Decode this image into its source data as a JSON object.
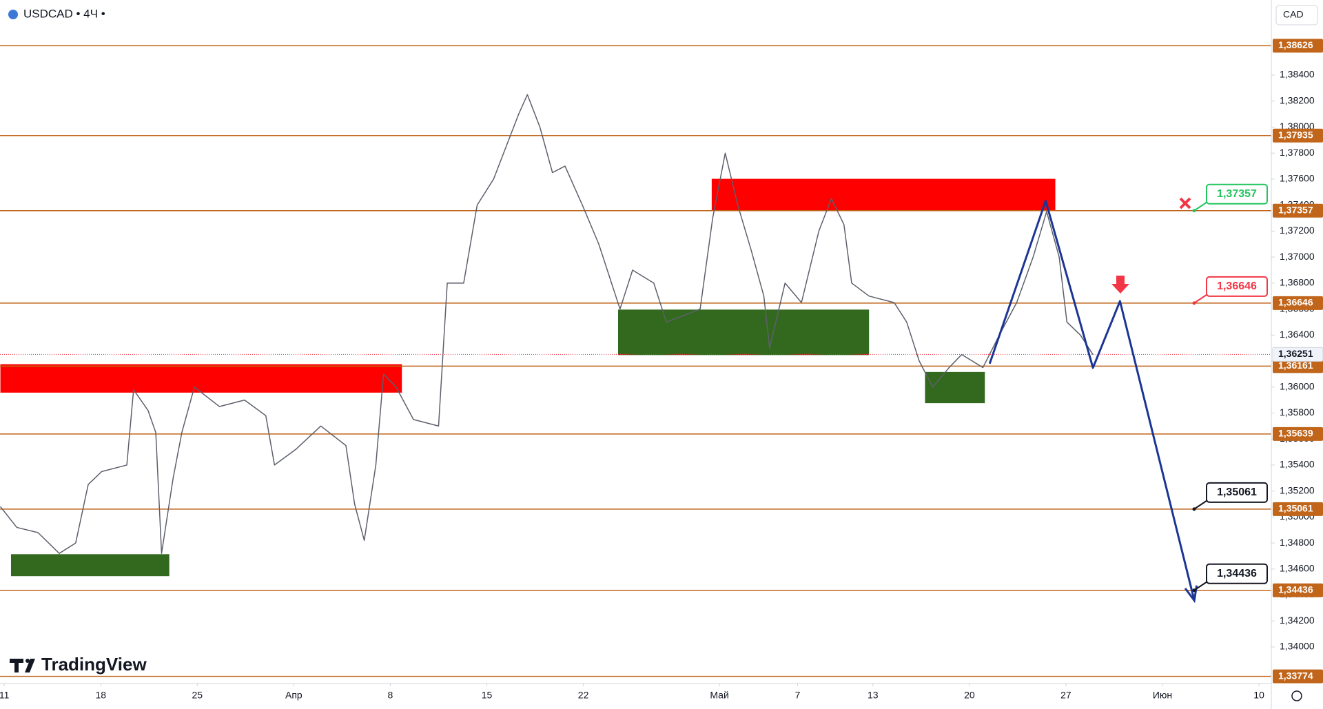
{
  "header": {
    "symbol": "USDCAD • 4Ч •",
    "currency": "CAD"
  },
  "logo": "TradingView",
  "chart_data": {
    "type": "line",
    "xlim": [
      -0.044,
      13.128
    ],
    "ylim": [
      1.33719,
      1.38978
    ],
    "xticks": [
      {
        "value": 0,
        "label": "11"
      },
      {
        "value": 1,
        "label": "18"
      },
      {
        "value": 2,
        "label": "25"
      },
      {
        "value": 3,
        "label": "Апр"
      },
      {
        "value": 4,
        "label": "8"
      },
      {
        "value": 5,
        "label": "15"
      },
      {
        "value": 6,
        "label": "22"
      },
      {
        "value": 7.41,
        "label": "Май"
      },
      {
        "value": 8.22,
        "label": "7"
      },
      {
        "value": 9,
        "label": "13"
      },
      {
        "value": 10,
        "label": "20"
      },
      {
        "value": 11,
        "label": "27"
      },
      {
        "value": 12,
        "label": "Июн"
      },
      {
        "value": 13,
        "label": "10"
      }
    ],
    "yticks": [
      {
        "value": 1.34,
        "label": "1,34000"
      },
      {
        "value": 1.342,
        "label": "1,34200"
      },
      {
        "value": 1.344,
        "label": "1,34400"
      },
      {
        "value": 1.346,
        "label": "1,34600"
      },
      {
        "value": 1.348,
        "label": "1,34800"
      },
      {
        "value": 1.35,
        "label": "1,35000"
      },
      {
        "value": 1.352,
        "label": "1,35200"
      },
      {
        "value": 1.354,
        "label": "1,35400"
      },
      {
        "value": 1.356,
        "label": "1,35600"
      },
      {
        "value": 1.358,
        "label": "1,35800"
      },
      {
        "value": 1.36,
        "label": "1,36000"
      },
      {
        "value": 1.362,
        "label": "1,36200"
      },
      {
        "value": 1.364,
        "label": "1,36400"
      },
      {
        "value": 1.366,
        "label": "1,36600"
      },
      {
        "value": 1.368,
        "label": "1,36800"
      },
      {
        "value": 1.37,
        "label": "1,37000"
      },
      {
        "value": 1.372,
        "label": "1,37200"
      },
      {
        "value": 1.374,
        "label": "1,37400"
      },
      {
        "value": 1.376,
        "label": "1,37600"
      },
      {
        "value": 1.378,
        "label": "1,37800"
      },
      {
        "value": 1.38,
        "label": "1,38000"
      },
      {
        "value": 1.382,
        "label": "1,38200"
      },
      {
        "value": 1.384,
        "label": "1,38400"
      }
    ],
    "levels": [
      {
        "value": 1.38626,
        "label": "1,38626"
      },
      {
        "value": 1.37935,
        "label": "1,37935"
      },
      {
        "value": 1.37357,
        "label": "1,37357"
      },
      {
        "value": 1.36646,
        "label": "1,36646"
      },
      {
        "value": 1.36161,
        "label": "1,36161"
      },
      {
        "value": 1.35639,
        "label": "1,35639"
      },
      {
        "value": 1.35061,
        "label": "1,35061"
      },
      {
        "value": 1.34436,
        "label": "1,34436"
      },
      {
        "value": 1.33774,
        "label": "1,33774"
      }
    ],
    "level_color": "#c0651a",
    "current_price": {
      "value": 1.36251,
      "label": "1,36251"
    },
    "price": {
      "color": "#5d606b",
      "x": [
        -0.04,
        0.13,
        0.35,
        0.57,
        0.74,
        0.87,
        1.01,
        1.27,
        1.34,
        1.49,
        1.57,
        1.63,
        1.75,
        1.84,
        1.97,
        2.23,
        2.49,
        2.71,
        2.8,
        3.02,
        3.28,
        3.54,
        3.63,
        3.73,
        3.85,
        3.93,
        4.06,
        4.24,
        4.5,
        4.59,
        4.76,
        4.9,
        5.07,
        5.2,
        5.33,
        5.42,
        5.55,
        5.68,
        5.81,
        5.99,
        6.16,
        6.38,
        6.51,
        6.73,
        6.86,
        7.04,
        7.21,
        7.34,
        7.47,
        7.6,
        7.74,
        7.87,
        7.93,
        8.09,
        8.26,
        8.44,
        8.57,
        8.7,
        8.78,
        8.96,
        9.22,
        9.35,
        9.48,
        9.62,
        9.79,
        9.92,
        10.14,
        10.31,
        10.49,
        10.66,
        10.8,
        10.93,
        11.01,
        11.15,
        11.28
      ],
      "values": [
        1.3508,
        1.3492,
        1.3488,
        1.3472,
        1.348,
        1.3525,
        1.3535,
        1.354,
        1.3598,
        1.3582,
        1.3565,
        1.3472,
        1.353,
        1.3565,
        1.36,
        1.3585,
        1.359,
        1.3578,
        1.354,
        1.3552,
        1.357,
        1.3555,
        1.351,
        1.3482,
        1.354,
        1.361,
        1.36,
        1.3575,
        1.357,
        1.368,
        1.368,
        1.374,
        1.376,
        1.3785,
        1.381,
        1.3825,
        1.38,
        1.3765,
        1.377,
        1.374,
        1.371,
        1.366,
        1.369,
        1.368,
        1.365,
        1.3655,
        1.366,
        1.373,
        1.378,
        1.374,
        1.3705,
        1.367,
        1.363,
        1.368,
        1.3665,
        1.372,
        1.3745,
        1.3725,
        1.368,
        1.367,
        1.3665,
        1.365,
        1.362,
        1.36,
        1.3615,
        1.3625,
        1.3615,
        1.364,
        1.3665,
        1.37,
        1.3735,
        1.37,
        1.365,
        1.364,
        1.3625
      ]
    },
    "zones": [
      {
        "color": "#ff0000",
        "x": [
          -0.04,
          4.12
        ],
        "y": [
          1.35957,
          1.36176
        ]
      },
      {
        "color": "#ff0000",
        "x": [
          7.33,
          10.89
        ],
        "y": [
          1.37355,
          1.37602
        ]
      },
      {
        "color": "#33691e",
        "x": [
          0.07,
          1.71
        ],
        "y": [
          1.34545,
          1.34714
        ]
      },
      {
        "color": "#33691e",
        "x": [
          6.36,
          8.96
        ],
        "y": [
          1.36246,
          1.36596
        ]
      },
      {
        "color": "#33691e",
        "x": [
          9.54,
          10.16
        ],
        "y": [
          1.35876,
          1.36116
        ]
      }
    ],
    "projection": {
      "color": "#1c3594",
      "x": [
        10.21,
        10.79,
        11.28,
        11.56,
        12.33
      ],
      "values": [
        1.3618,
        1.37433,
        1.36148,
        1.36661,
        1.34358
      ]
    },
    "callouts": [
      {
        "value": 1.37357,
        "label": "1,37357",
        "color": "#22c55e"
      },
      {
        "value": 1.36646,
        "label": "1,36646",
        "color": "#f23645"
      },
      {
        "value": 1.35061,
        "label": "1,35061",
        "color": "#131722"
      },
      {
        "value": 1.34436,
        "label": "1,34436",
        "color": "#131722"
      }
    ]
  }
}
